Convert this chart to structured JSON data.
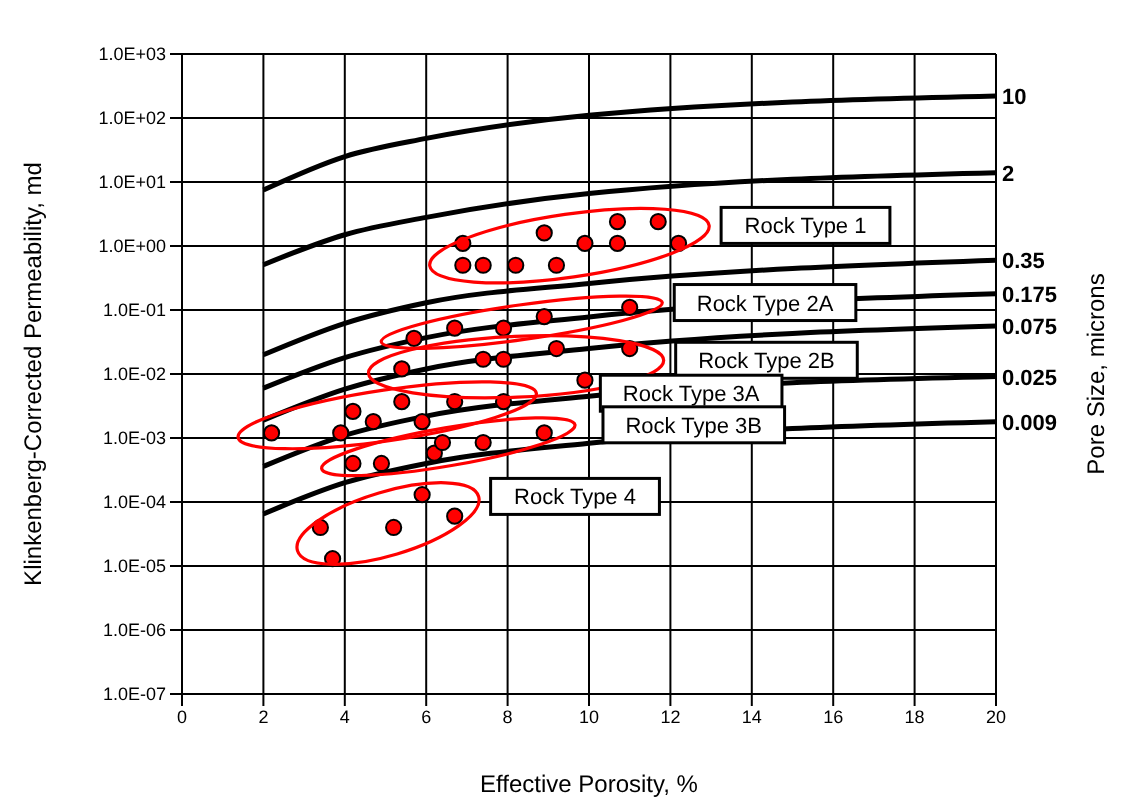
{
  "chart_data": {
    "type": "scatter",
    "xlabel": "Effective Porosity, %",
    "ylabel": "Klinkenberg-Corrected Permeability, md",
    "y2label": "Pore Size, microns",
    "log": "y",
    "grid": true,
    "marker": "circle",
    "xlim": [
      0,
      20
    ],
    "xticks": [
      0,
      2,
      4,
      6,
      8,
      10,
      12,
      14,
      16,
      18,
      20
    ],
    "ylim": [
      1e-07,
      1000
    ],
    "yticks": [
      {
        "value": 1e-07,
        "label": "1.0E-07"
      },
      {
        "value": 1e-06,
        "label": "1.0E-06"
      },
      {
        "value": 1e-05,
        "label": "1.0E-05"
      },
      {
        "value": 0.0001,
        "label": "1.0E-04"
      },
      {
        "value": 0.001,
        "label": "1.0E-03"
      },
      {
        "value": 0.01,
        "label": "1.0E-02"
      },
      {
        "value": 0.1,
        "label": "1.0E-01"
      },
      {
        "value": 1,
        "label": "1.0E+00"
      },
      {
        "value": 10,
        "label": "1.0E+01"
      },
      {
        "value": 100,
        "label": "1.0E+02"
      },
      {
        "value": 1000,
        "label": "1.0E+03"
      }
    ],
    "series": [
      {
        "type": "line",
        "name": "10",
        "color": "#000000",
        "marker": "none",
        "x": [
          2,
          4,
          6,
          10,
          20
        ],
        "values": [
          7.5,
          25,
          48,
          110,
          220
        ]
      },
      {
        "type": "line",
        "name": "2",
        "color": "#000000",
        "marker": "none",
        "x": [
          2,
          4,
          6,
          10,
          20
        ],
        "values": [
          0.51,
          1.5,
          2.8,
          6.6,
          14
        ]
      },
      {
        "type": "line",
        "name": "0.35",
        "color": "#000000",
        "marker": "none",
        "x": [
          2,
          4,
          6,
          10,
          20
        ],
        "values": [
          0.02,
          0.062,
          0.13,
          0.26,
          0.6
        ]
      },
      {
        "type": "line",
        "name": "0.175",
        "color": "#000000",
        "marker": "none",
        "x": [
          2,
          4,
          6,
          10,
          20
        ],
        "values": [
          0.006,
          0.018,
          0.037,
          0.078,
          0.18
        ]
      },
      {
        "type": "line",
        "name": "0.075",
        "color": "#000000",
        "marker": "none",
        "x": [
          2,
          4,
          6,
          10,
          20
        ],
        "values": [
          0.0019,
          0.0058,
          0.012,
          0.025,
          0.056
        ]
      },
      {
        "type": "line",
        "name": "0.025",
        "color": "#000000",
        "marker": "none",
        "x": [
          2,
          4,
          6,
          10,
          20
        ],
        "values": [
          0.00036,
          0.0011,
          0.0022,
          0.0045,
          0.0091
        ]
      },
      {
        "type": "line",
        "name": "0.009",
        "color": "#000000",
        "marker": "none",
        "x": [
          2,
          4,
          6,
          10,
          20
        ],
        "values": [
          6.5e-05,
          0.0002,
          0.0004,
          0.00083,
          0.0018
        ]
      },
      {
        "name": "Rock Type 1",
        "color": "#ff0000",
        "x": [
          6.9,
          6.9,
          7.4,
          8.2,
          8.9,
          9.2,
          9.9,
          10.7,
          10.7,
          11.7,
          12.2
        ],
        "values": [
          1.1,
          0.5,
          0.5,
          0.5,
          1.6,
          0.5,
          1.1,
          2.4,
          1.1,
          2.4,
          1.1
        ]
      },
      {
        "name": "Rock Type 2A",
        "color": "#ff0000",
        "x": [
          5.7,
          6.7,
          7.9,
          8.9,
          11
        ],
        "values": [
          0.036,
          0.052,
          0.052,
          0.079,
          0.11
        ]
      },
      {
        "name": "Rock Type 2B",
        "color": "#ff0000",
        "x": [
          5.4,
          7.4,
          7.9,
          9.2,
          11,
          9.9
        ],
        "values": [
          0.012,
          0.017,
          0.017,
          0.025,
          0.025,
          0.008
        ]
      },
      {
        "name": "Rock Type 3A",
        "color": "#ff0000",
        "x": [
          2.2,
          3.9,
          4.2,
          4.7,
          5.4,
          5.9,
          6.7,
          7.9
        ],
        "values": [
          0.0012,
          0.0012,
          0.0026,
          0.0018,
          0.0037,
          0.0018,
          0.0037,
          0.0037
        ]
      },
      {
        "name": "Rock Type 3B",
        "color": "#ff0000",
        "x": [
          4.2,
          4.9,
          6.2,
          6.4,
          7.4,
          8.9
        ],
        "values": [
          0.0004,
          0.0004,
          0.00058,
          0.00085,
          0.00085,
          0.0012
        ]
      },
      {
        "name": "Rock Type 4",
        "color": "#ff0000",
        "x": [
          3.4,
          3.7,
          5.2,
          5.9,
          6.7
        ],
        "values": [
          4e-05,
          1.3e-05,
          4e-05,
          0.00013,
          6e-05
        ]
      }
    ]
  }
}
